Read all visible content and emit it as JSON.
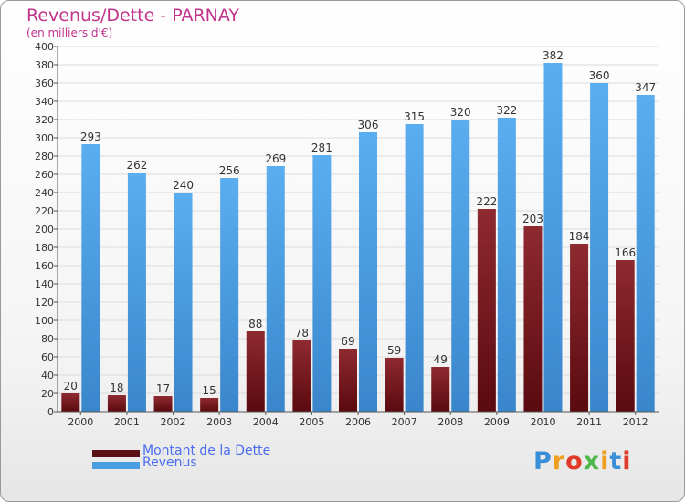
{
  "chart_data": {
    "type": "bar",
    "title": "Revenus/Dette - PARNAY",
    "subtitle": "(en milliers d'€)",
    "categories": [
      "2000",
      "2001",
      "2002",
      "2003",
      "2004",
      "2005",
      "2006",
      "2007",
      "2008",
      "2009",
      "2010",
      "2011",
      "2012"
    ],
    "series": [
      {
        "name": "Montant de la Dette",
        "color": "#7a1a1f",
        "values": [
          20,
          18,
          17,
          15,
          88,
          78,
          69,
          59,
          49,
          222,
          203,
          184,
          166
        ]
      },
      {
        "name": "Revenus",
        "color": "#4a9ee0",
        "values": [
          293,
          262,
          240,
          256,
          269,
          281,
          306,
          315,
          320,
          322,
          382,
          360,
          347
        ]
      }
    ],
    "ylim": [
      0,
      400
    ],
    "ytick_step": 20,
    "grid": true,
    "legend_position": "bottom-left"
  },
  "logo": {
    "text": "Proxiti",
    "colors": [
      "#3a8fd6",
      "#f0a020",
      "#e03a2a",
      "#4db848",
      "#f0a020",
      "#3a8fd6",
      "#e03a2a"
    ]
  }
}
